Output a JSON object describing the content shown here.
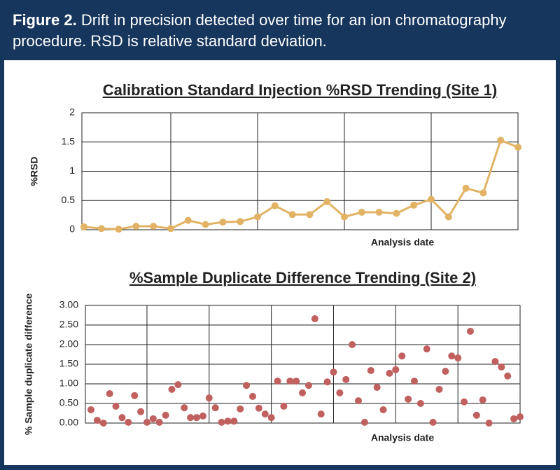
{
  "header": {
    "label": "Figure 2.",
    "caption": "Drift in precision detected over time for an ion chromatography procedure. RSD is relative standard deviation."
  },
  "chart_data": [
    {
      "type": "line",
      "title": "Calibration Standard Injection %RSD Trending (Site 1)",
      "x_label": "Analysis date",
      "y_label": "%RSD",
      "color": "#e2b364",
      "markers": true,
      "grid": true,
      "show_xtick_labels": false,
      "x": [
        1,
        2,
        3,
        4,
        5,
        6,
        7,
        8,
        9,
        10,
        11,
        12,
        13,
        14,
        15,
        16,
        17,
        18,
        19,
        20,
        21,
        22,
        23,
        24,
        25,
        26
      ],
      "values": [
        0.05,
        0.02,
        0.01,
        0.06,
        0.06,
        0.02,
        0.16,
        0.09,
        0.13,
        0.14,
        0.22,
        0.41,
        0.26,
        0.26,
        0.48,
        0.22,
        0.3,
        0.3,
        0.28,
        0.42,
        0.52,
        0.22,
        0.71,
        0.63,
        1.53,
        1.41
      ],
      "xlim": [
        0.88,
        26
      ],
      "xticks": [
        6,
        11,
        16,
        21
      ],
      "ylim": [
        0,
        2
      ],
      "yticks": [
        0,
        0.5,
        1,
        1.5,
        2
      ]
    },
    {
      "type": "scatter",
      "title": "%Sample Duplicate Difference Trending (Site 2)",
      "x_label": "Analysis date",
      "y_label": "% Sample duplicate difference",
      "color": "#c0605f",
      "grid": true,
      "show_xtick_labels": false,
      "x": [
        1,
        2,
        3,
        4,
        5,
        6,
        7,
        8,
        9,
        10,
        11,
        12,
        13,
        14,
        15,
        16,
        17,
        18,
        19,
        20,
        21,
        22,
        23,
        24,
        25,
        26,
        27,
        28,
        29,
        30,
        31,
        32,
        33,
        34,
        35,
        36,
        37,
        38,
        39,
        40,
        41,
        42,
        43,
        44,
        45,
        46,
        47,
        48,
        49,
        50,
        51,
        52,
        53,
        54,
        55,
        56,
        57,
        58,
        59,
        60,
        61,
        62,
        63,
        64,
        65,
        66,
        67,
        68,
        69,
        70
      ],
      "values": [
        0.34,
        0.07,
        0.0,
        0.75,
        0.43,
        0.14,
        0.02,
        0.7,
        0.29,
        0.02,
        0.11,
        0.02,
        0.2,
        0.86,
        0.98,
        0.39,
        0.14,
        0.14,
        0.18,
        0.64,
        0.39,
        0.02,
        0.05,
        0.05,
        0.36,
        0.96,
        0.68,
        0.38,
        0.23,
        0.14,
        1.07,
        0.43,
        1.07,
        1.07,
        0.77,
        0.96,
        2.66,
        0.23,
        1.05,
        1.3,
        0.77,
        1.11,
        2.0,
        0.57,
        0.02,
        1.34,
        0.91,
        0.34,
        1.27,
        1.36,
        1.71,
        0.61,
        1.07,
        0.5,
        1.89,
        0.02,
        0.86,
        1.32,
        1.71,
        1.66,
        0.54,
        2.34,
        0.2,
        0.59,
        0.0,
        1.57,
        1.43,
        1.2,
        0.11,
        0.16
      ],
      "xlim": [
        0.1,
        70
      ],
      "xticks": [
        10,
        20,
        30,
        40,
        50,
        60
      ],
      "ylim": [
        0,
        3
      ],
      "yticks": [
        {
          "value": 0,
          "label": "0.00"
        },
        {
          "value": 0.5,
          "label": "0.50"
        },
        {
          "value": 1,
          "label": "1.00"
        },
        {
          "value": 1.5,
          "label": "1.50"
        },
        {
          "value": 2,
          "label": "2.00"
        },
        {
          "value": 2.5,
          "label": "2.50"
        },
        {
          "value": 3,
          "label": "3.00"
        }
      ]
    }
  ]
}
